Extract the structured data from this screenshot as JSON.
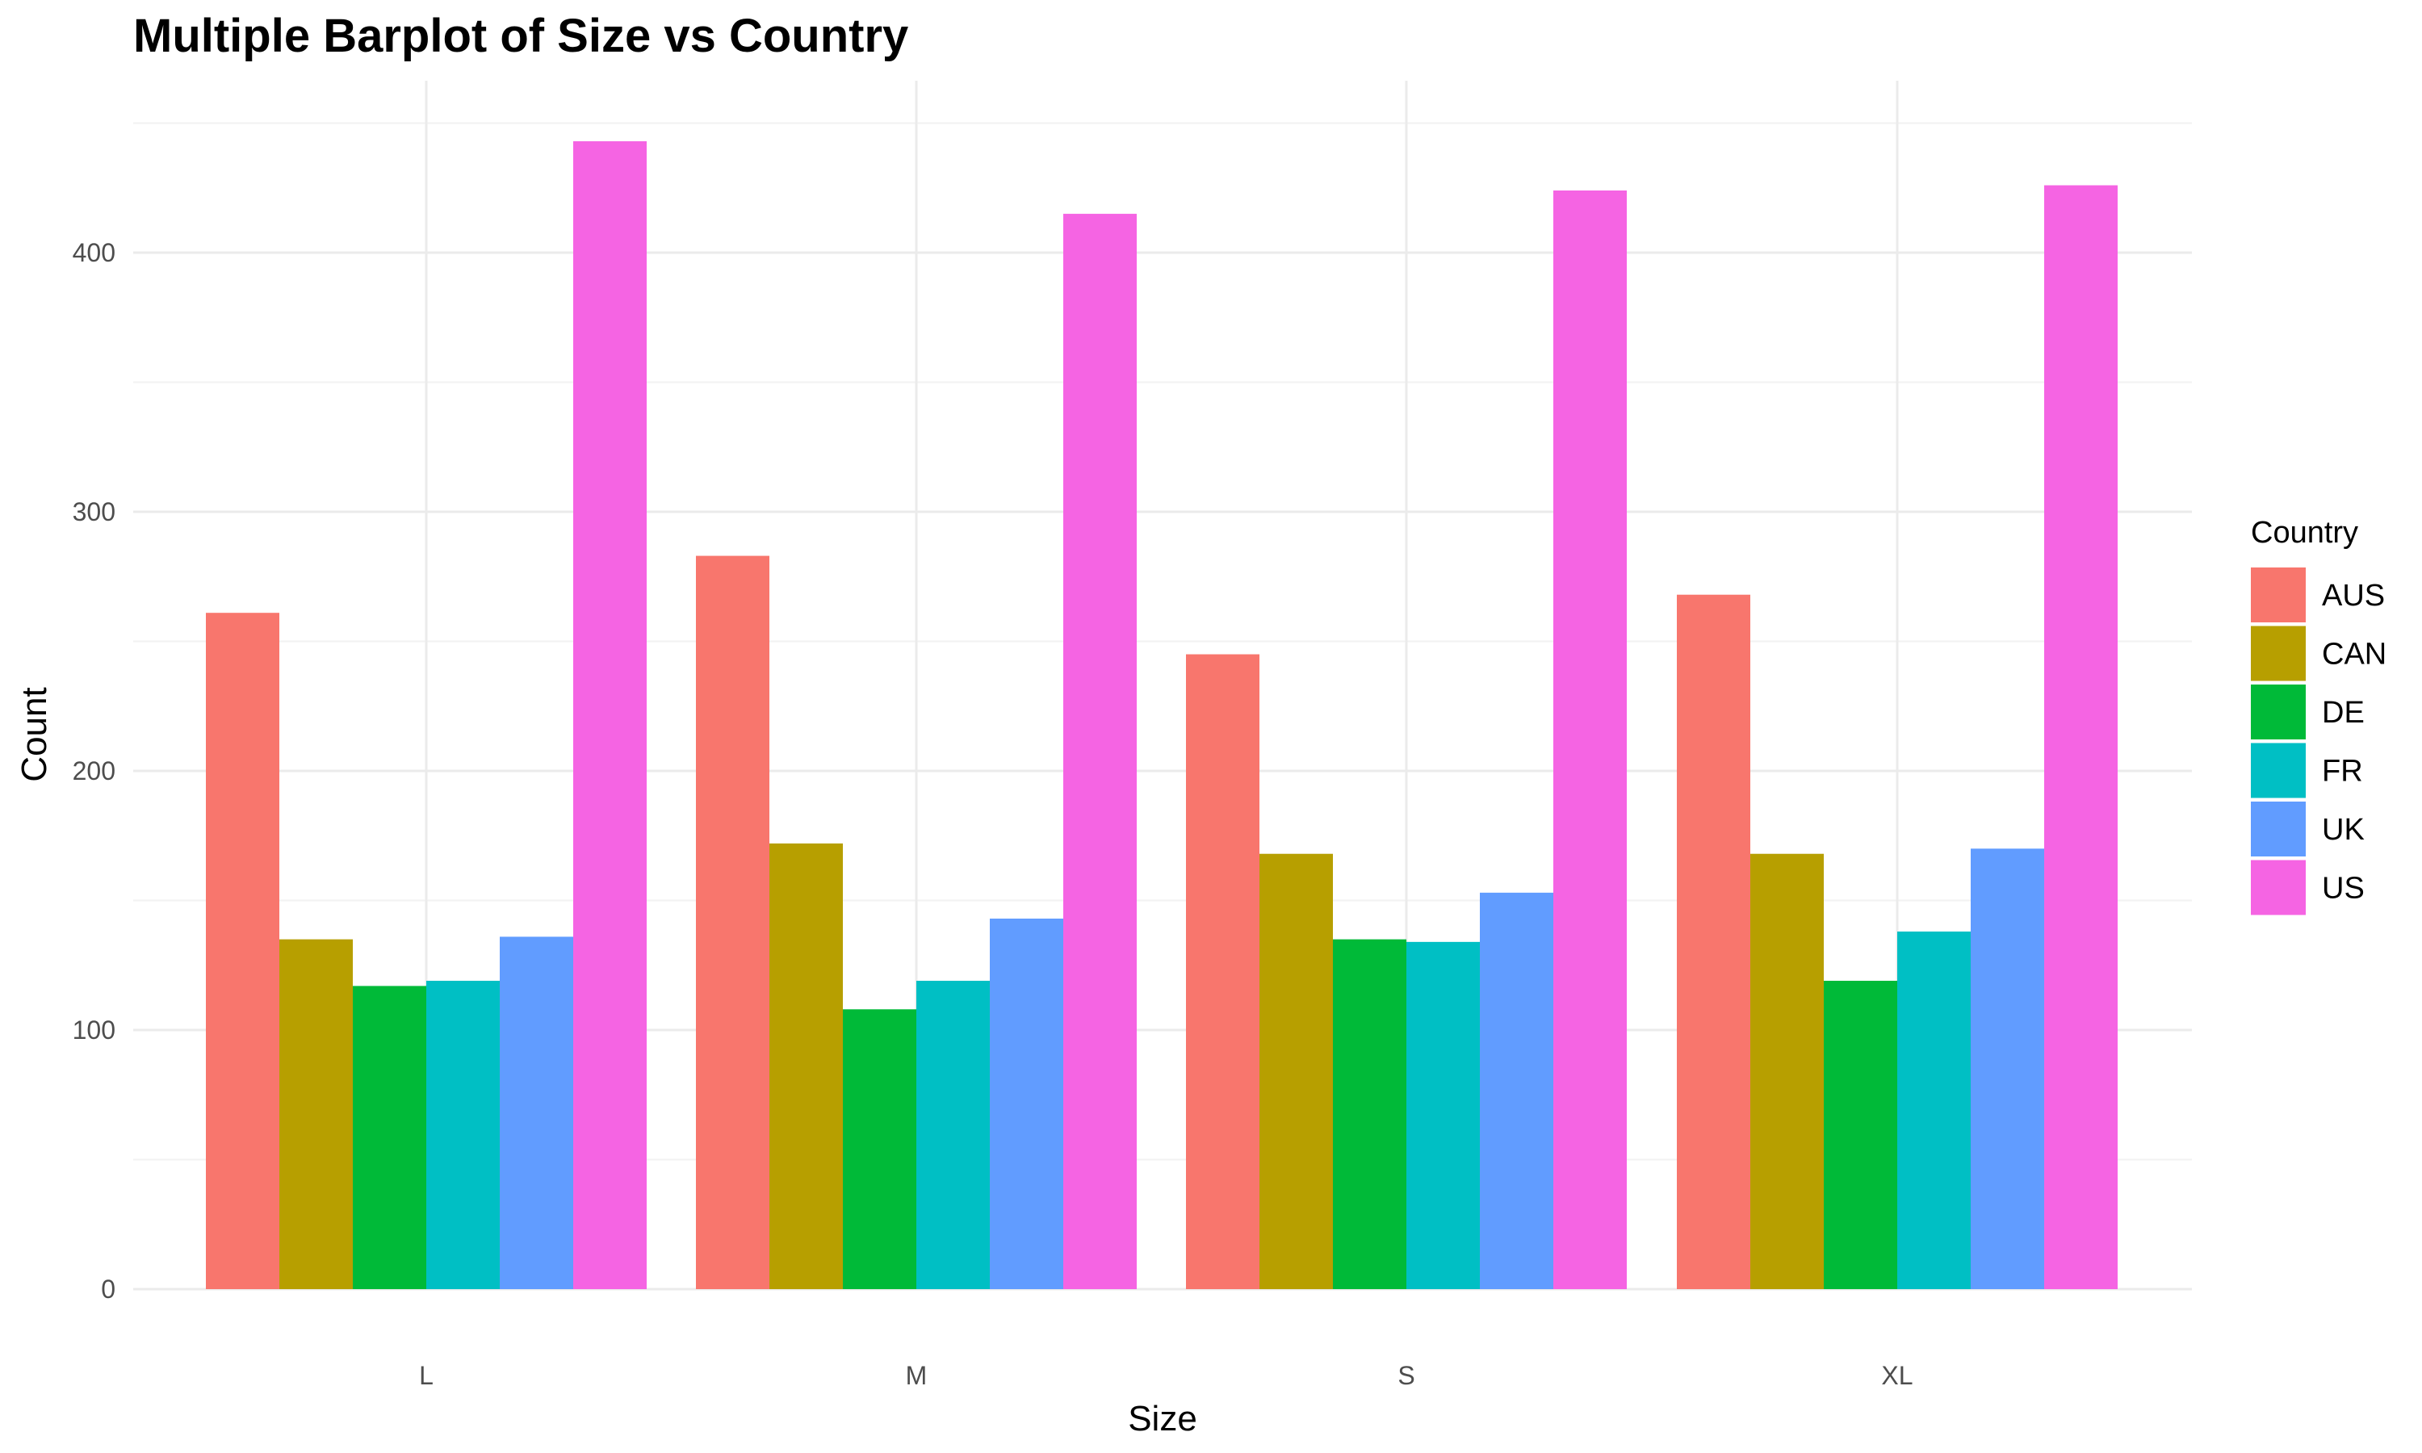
{
  "chart_data": {
    "type": "bar",
    "title": "Multiple Barplot of Size vs Country",
    "xlabel": "Size",
    "ylabel": "Count",
    "categories": [
      "L",
      "M",
      "S",
      "XL"
    ],
    "ylim": [
      0,
      450
    ],
    "yticks": [
      0,
      100,
      200,
      300,
      400
    ],
    "ytick_labels": [
      "0",
      "100",
      "200",
      "300",
      "400"
    ],
    "grid": true,
    "legend": {
      "title": "Country",
      "placement": "right"
    },
    "series": [
      {
        "name": "AUS",
        "color": "#F8766D",
        "values": [
          261,
          283,
          245,
          268
        ]
      },
      {
        "name": "CAN",
        "color": "#B79F00",
        "values": [
          135,
          172,
          168,
          168
        ]
      },
      {
        "name": "DE",
        "color": "#00BA38",
        "values": [
          117,
          108,
          135,
          119
        ]
      },
      {
        "name": "FR",
        "color": "#00BFC4",
        "values": [
          119,
          119,
          134,
          138
        ]
      },
      {
        "name": "UK",
        "color": "#619CFF",
        "values": [
          136,
          143,
          153,
          170
        ]
      },
      {
        "name": "US",
        "color": "#F564E3",
        "values": [
          443,
          415,
          424,
          426
        ]
      }
    ]
  }
}
